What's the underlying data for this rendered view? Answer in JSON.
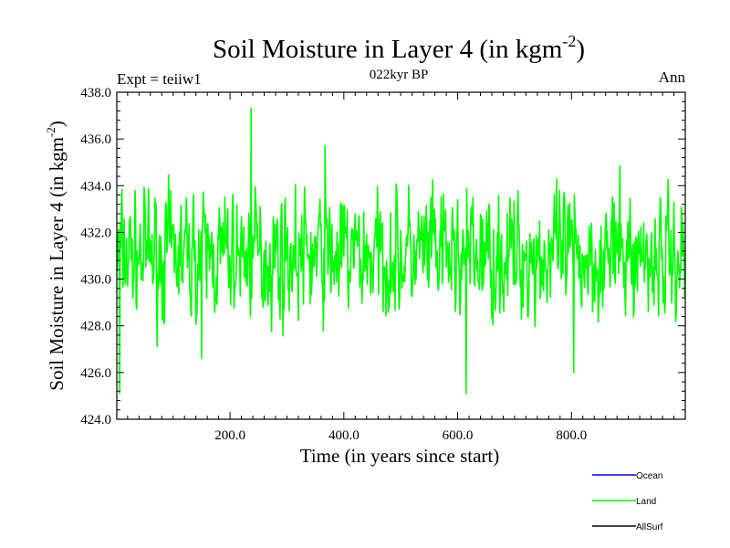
{
  "chart_data": {
    "type": "line",
    "title": "Soil Moisture in Layer 4 (in kgm",
    "title_sup": "-2",
    "title_close": ")",
    "subtitle": "022kyr BP",
    "left_label": "Expt = teiiw1",
    "right_label": "Ann",
    "xlabel": "Time (in years since start)",
    "ylabel": "Soil Moisture in Layer 4 (in kgm",
    "ylabel_sup": "-2",
    "ylabel_close": ")",
    "xlim": [
      1,
      1000
    ],
    "ylim": [
      424,
      438
    ],
    "x_ticks": [
      200,
      400,
      600,
      800
    ],
    "x_tick_labels": [
      "200.0",
      "400.0",
      "600.0",
      "800.0"
    ],
    "y_ticks": [
      424,
      426,
      428,
      430,
      432,
      434,
      436,
      438
    ],
    "y_tick_labels": [
      "424.0",
      "426.0",
      "428.0",
      "430.0",
      "432.0",
      "434.0",
      "436.0",
      "438.0"
    ],
    "legend_position": "bottom-right",
    "series": [
      {
        "name": "Ocean",
        "color": "#0000ff",
        "values": []
      },
      {
        "name": "Land",
        "color": "#00ff00",
        "mean": 431.0,
        "range": [
          425.1,
          437.3
        ]
      },
      {
        "name": "AllSurf",
        "color": "#000000",
        "values": []
      }
    ]
  }
}
